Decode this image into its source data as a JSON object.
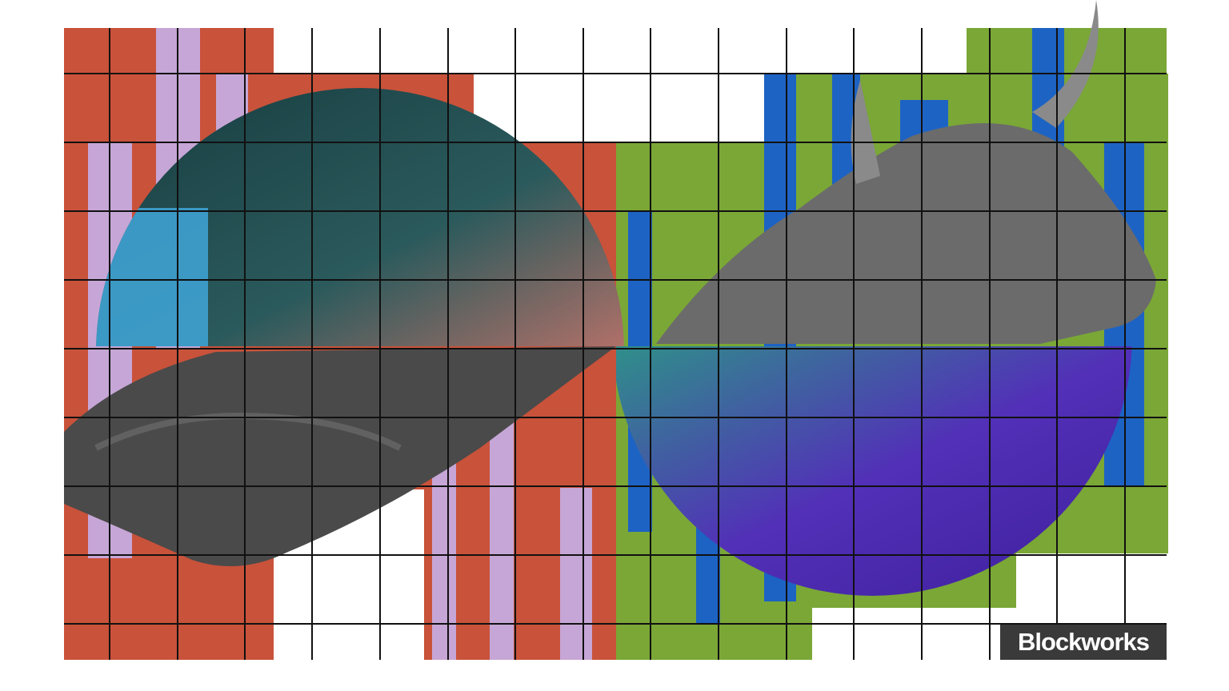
{
  "image": {
    "subject": "bear-and-bull-collage",
    "colors": {
      "bear_red": "#c9523a",
      "bear_lilac": "#c6a6d6",
      "bear_blue": "#3fa6d8",
      "bear_circle_top": "#1f4a4e",
      "bull_green": "#7aa736",
      "bull_blue": "#1d63c4",
      "bull_circle_bottom": "#4a2fb0",
      "grid_line": "#111111"
    }
  },
  "watermark": {
    "logo_text": "Blockworks"
  }
}
